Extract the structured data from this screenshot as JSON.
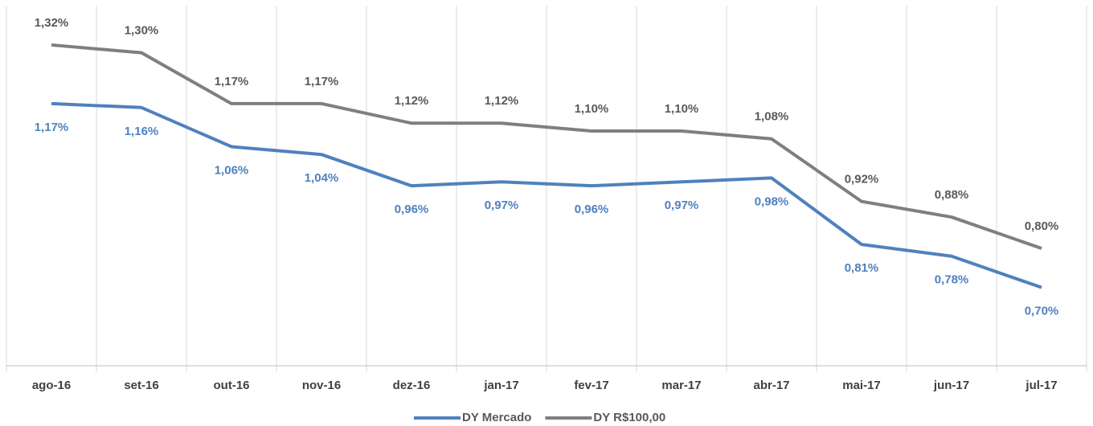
{
  "chart_data": {
    "type": "line",
    "categories": [
      "ago-16",
      "set-16",
      "out-16",
      "nov-16",
      "dez-16",
      "jan-17",
      "fev-17",
      "mar-17",
      "abr-17",
      "mai-17",
      "jun-17",
      "jul-17"
    ],
    "series": [
      {
        "name": "DY Mercado",
        "color": "#4f81bd",
        "values": [
          1.17,
          1.16,
          1.06,
          1.04,
          0.96,
          0.97,
          0.96,
          0.97,
          0.98,
          0.81,
          0.78,
          0.7
        ],
        "value_labels": [
          "1,17%",
          "1,16%",
          "1,06%",
          "1,04%",
          "0,96%",
          "0,97%",
          "0,96%",
          "0,97%",
          "0,98%",
          "0,81%",
          "0,78%",
          "0,70%"
        ]
      },
      {
        "name": "DY R$100,00",
        "color": "#7f7f7f",
        "values": [
          1.32,
          1.3,
          1.17,
          1.17,
          1.12,
          1.12,
          1.1,
          1.1,
          1.08,
          0.92,
          0.88,
          0.8
        ],
        "value_labels": [
          "1,32%",
          "1,30%",
          "1,17%",
          "1,17%",
          "1,12%",
          "1,12%",
          "1,10%",
          "1,10%",
          "1,08%",
          "0,92%",
          "0,88%",
          "0,80%"
        ]
      }
    ],
    "ylim": [
      0.5,
      1.4
    ],
    "legend": "bottom"
  }
}
